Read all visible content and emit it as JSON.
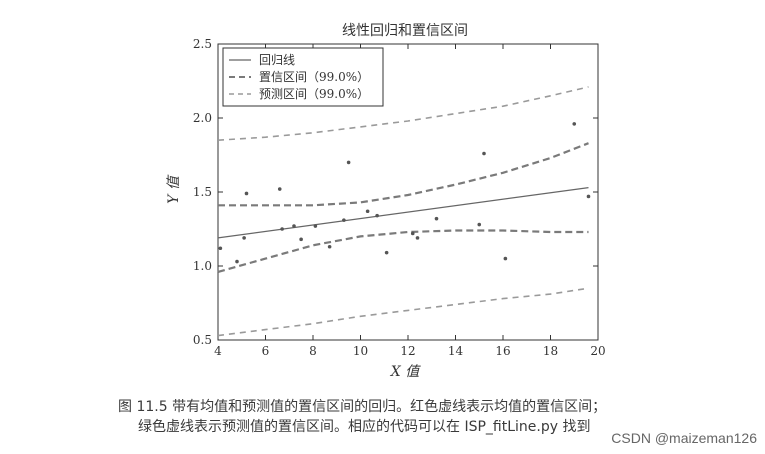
{
  "chart_data": {
    "type": "scatter",
    "title": "线性回归和置信区间",
    "xlabel": "X 值",
    "ylabel": "Y 值",
    "xlim": [
      4,
      20
    ],
    "ylim": [
      0.5,
      2.5
    ],
    "xticks": [
      4,
      6,
      8,
      10,
      12,
      14,
      16,
      18,
      20
    ],
    "yticks": [
      0.5,
      1.0,
      1.5,
      2.0,
      2.5
    ],
    "xtick_labels": [
      "4",
      "6",
      "8",
      "10",
      "12",
      "14",
      "16",
      "18",
      "20"
    ],
    "ytick_labels": [
      "0.5",
      "1.0",
      "1.5",
      "2.0",
      "2.5"
    ],
    "grid": false,
    "legend_position": "top-left",
    "legend": [
      {
        "label": "回归线",
        "style": "solid"
      },
      {
        "label": "置信区间（99.0%）",
        "style": "dashed"
      },
      {
        "label": "预测区间（99.0%）",
        "style": "dashed"
      }
    ],
    "points": [
      {
        "x": 4.1,
        "y": 1.12
      },
      {
        "x": 4.8,
        "y": 1.03
      },
      {
        "x": 5.1,
        "y": 1.19
      },
      {
        "x": 5.2,
        "y": 1.49
      },
      {
        "x": 6.6,
        "y": 1.52
      },
      {
        "x": 6.7,
        "y": 1.25
      },
      {
        "x": 7.2,
        "y": 1.27
      },
      {
        "x": 7.5,
        "y": 1.18
      },
      {
        "x": 8.1,
        "y": 1.27
      },
      {
        "x": 8.7,
        "y": 1.13
      },
      {
        "x": 9.3,
        "y": 1.31
      },
      {
        "x": 9.5,
        "y": 1.7
      },
      {
        "x": 10.3,
        "y": 1.37
      },
      {
        "x": 10.7,
        "y": 1.34
      },
      {
        "x": 11.1,
        "y": 1.09
      },
      {
        "x": 12.2,
        "y": 1.22
      },
      {
        "x": 12.4,
        "y": 1.19
      },
      {
        "x": 13.2,
        "y": 1.32
      },
      {
        "x": 15.0,
        "y": 1.28
      },
      {
        "x": 15.2,
        "y": 1.76
      },
      {
        "x": 16.1,
        "y": 1.05
      },
      {
        "x": 19.0,
        "y": 1.96
      },
      {
        "x": 19.6,
        "y": 1.47
      }
    ],
    "regression": {
      "x": [
        4,
        19.6
      ],
      "y": [
        1.19,
        1.53
      ]
    },
    "confidence_upper": {
      "x": [
        4,
        6,
        8,
        10,
        12,
        14,
        16,
        18,
        19.6
      ],
      "y": [
        1.41,
        1.41,
        1.41,
        1.43,
        1.48,
        1.55,
        1.63,
        1.73,
        1.83
      ]
    },
    "confidence_lower": {
      "x": [
        4,
        6,
        8,
        10,
        12,
        14,
        16,
        18,
        19.6
      ],
      "y": [
        0.96,
        1.05,
        1.14,
        1.2,
        1.23,
        1.24,
        1.24,
        1.23,
        1.23
      ]
    },
    "prediction_upper": {
      "x": [
        4,
        6,
        8,
        10,
        12,
        14,
        16,
        18,
        19.6
      ],
      "y": [
        1.85,
        1.87,
        1.9,
        1.94,
        1.98,
        2.03,
        2.08,
        2.15,
        2.21
      ]
    },
    "prediction_lower": {
      "x": [
        4,
        6,
        8,
        10,
        12,
        14,
        16,
        18,
        19.6
      ],
      "y": [
        0.53,
        0.57,
        0.61,
        0.66,
        0.7,
        0.74,
        0.78,
        0.81,
        0.85
      ]
    }
  },
  "caption": {
    "line1": "图 11.5   带有均值和预测值的置信区间的回归。红色虚线表示均值的置信区间；",
    "line2": "绿色虚线表示预测值的置信区间。相应的代码可以在 ISP_fitLine.py 找到"
  },
  "watermark": "CSDN @maizeman126",
  "colors": {
    "axis": "#333333",
    "regression": "#666666",
    "confidence": "#7a7a7a",
    "prediction": "#9a9a9a",
    "points": "#555555"
  }
}
